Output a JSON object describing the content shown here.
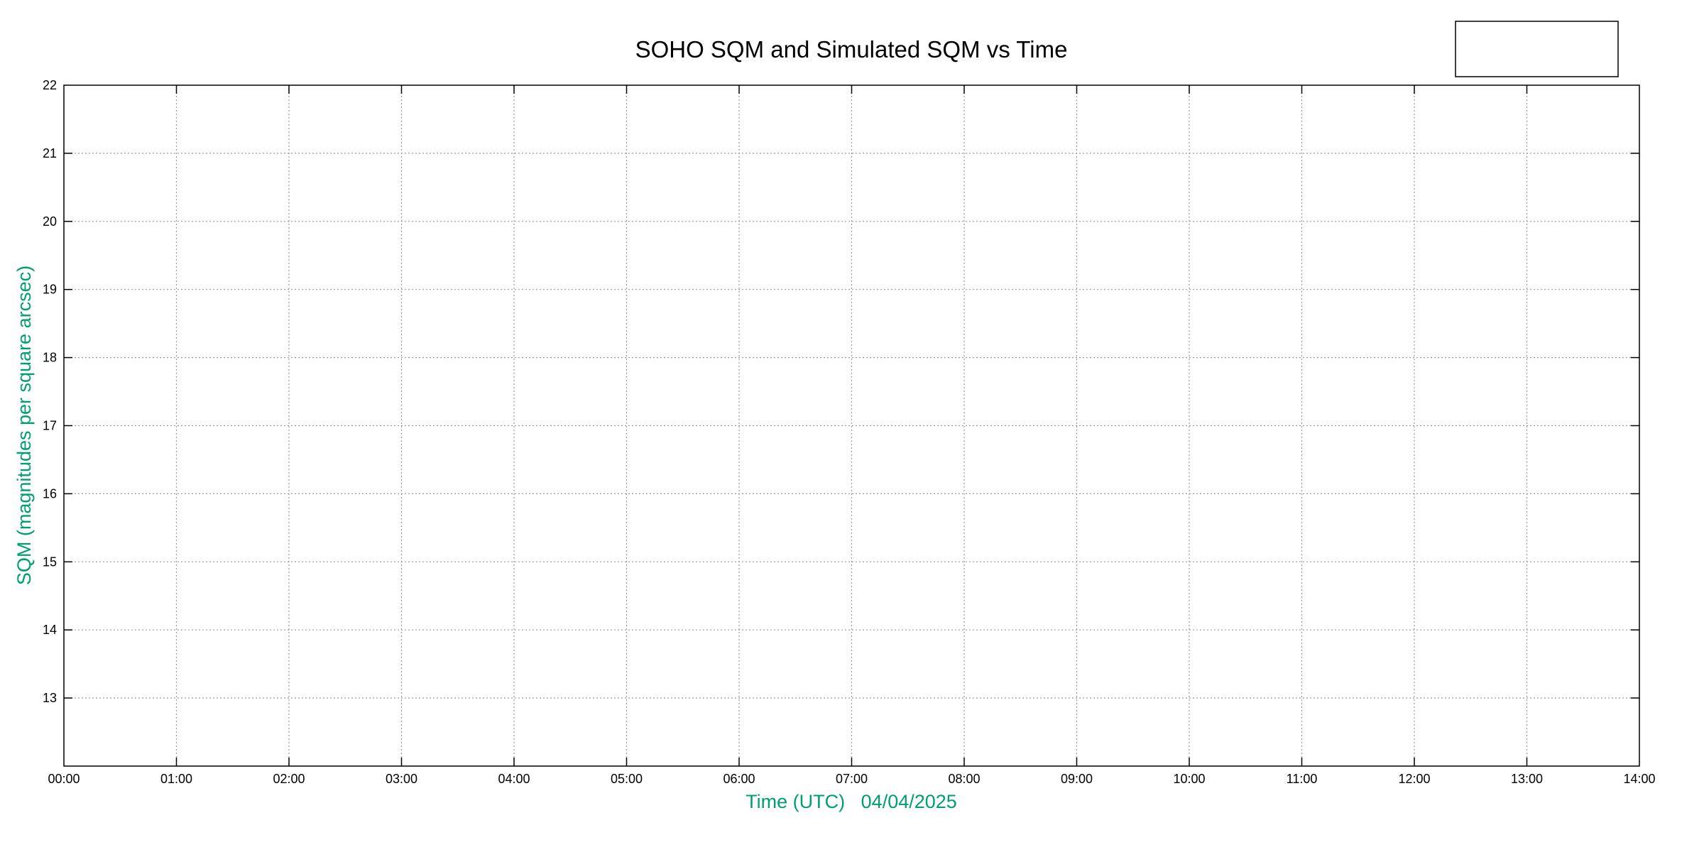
{
  "chart_data": {
    "type": "line",
    "title": "SOHO SQM and Simulated SQM vs Time",
    "xlabel": "Time (UTC)   04/04/2025",
    "ylabel": "SQM (magnitudes per square arcsec)",
    "xlim": [
      0,
      14
    ],
    "ylim": [
      12,
      22
    ],
    "x_tick_labels": [
      "00:00",
      "01:00",
      "02:00",
      "03:00",
      "04:00",
      "05:00",
      "06:00",
      "07:00",
      "08:00",
      "09:00",
      "10:00",
      "11:00",
      "12:00",
      "13:00",
      "14:00"
    ],
    "y_ticks": [
      13,
      14,
      15,
      16,
      17,
      18,
      19,
      20,
      21,
      22
    ],
    "grid": true,
    "legend_placement": "top-right",
    "legend_entries": [],
    "series": [],
    "colors": {
      "axis_label": "#009e73",
      "grid": "#999999",
      "axes": "#000000"
    }
  }
}
